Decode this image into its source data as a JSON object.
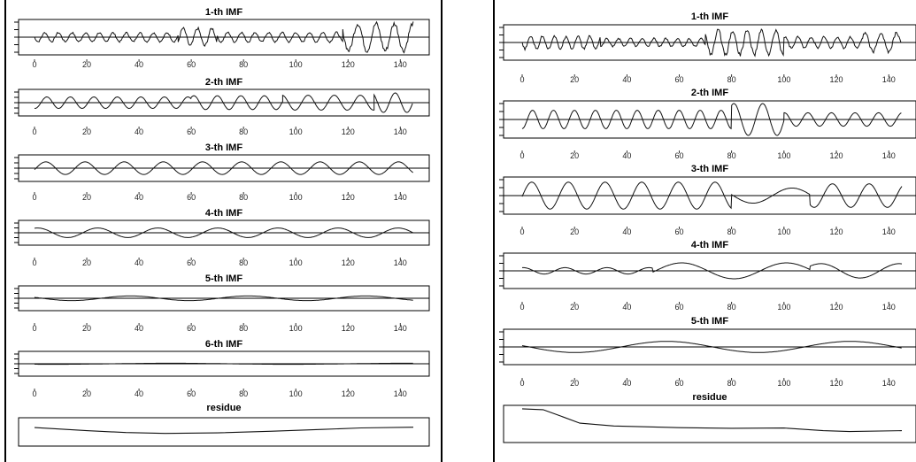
{
  "figures": [
    {
      "id": "left",
      "plots": [
        {
          "title": "1-th IMF",
          "x_ticks": [
            0,
            20,
            40,
            60,
            80,
            100,
            120,
            140
          ],
          "wave": {
            "segments": [
              [
                0,
                55,
                0.28,
                5.2
              ],
              [
                55,
                70,
                0.55,
                5.5
              ],
              [
                70,
                118,
                0.3,
                5.2
              ],
              [
                118,
                145,
                0.85,
                7
              ]
            ]
          }
        },
        {
          "title": "2-th IMF",
          "x_ticks": [
            0,
            20,
            40,
            60,
            80,
            100,
            120,
            140
          ],
          "wave": {
            "segments": [
              [
                0,
                60,
                0.5,
                9
              ],
              [
                60,
                95,
                0.6,
                9
              ],
              [
                95,
                130,
                0.65,
                10
              ],
              [
                130,
                145,
                0.85,
                9
              ]
            ]
          }
        },
        {
          "title": "3-th IMF",
          "x_ticks": [
            0,
            20,
            40,
            60,
            80,
            100,
            120,
            140
          ],
          "wave": {
            "segments": [
              [
                0,
                145,
                0.55,
                15
              ]
            ]
          }
        },
        {
          "title": "4-th IMF",
          "x_ticks": [
            0,
            20,
            40,
            60,
            80,
            100,
            120,
            140
          ],
          "wave": {
            "segments": [
              [
                0,
                145,
                0.45,
                23
              ]
            ]
          }
        },
        {
          "title": "5-th IMF",
          "x_ticks": [
            0,
            20,
            40,
            60,
            80,
            100,
            120,
            140
          ],
          "wave": {
            "segments": [
              [
                0,
                145,
                0.22,
                45
              ]
            ]
          }
        },
        {
          "title": "6-th IMF",
          "x_ticks": [
            0,
            20,
            40,
            60,
            80,
            100,
            120,
            140
          ],
          "wave": {
            "segments": [
              [
                0,
                145,
                0.05,
                90
              ]
            ]
          }
        },
        {
          "title": "residue",
          "x_ticks": [],
          "trend": [
            [
              0,
              0.35
            ],
            [
              20,
              0.1
            ],
            [
              35,
              -0.05
            ],
            [
              50,
              -0.12
            ],
            [
              70,
              -0.08
            ],
            [
              90,
              0.05
            ],
            [
              110,
              0.2
            ],
            [
              125,
              0.32
            ],
            [
              145,
              0.38
            ]
          ]
        }
      ]
    },
    {
      "id": "right",
      "plots": [
        {
          "title": "1-th IMF",
          "x_ticks": [
            0,
            20,
            40,
            60,
            80,
            100,
            120,
            140
          ],
          "wave": {
            "segments": [
              [
                0,
                30,
                0.4,
                4.5
              ],
              [
                30,
                70,
                0.25,
                4.5
              ],
              [
                70,
                100,
                0.75,
                5.5
              ],
              [
                100,
                130,
                0.35,
                5
              ],
              [
                130,
                145,
                0.6,
                6
              ]
            ]
          }
        },
        {
          "title": "2-th IMF",
          "x_ticks": [
            0,
            20,
            40,
            60,
            80,
            100,
            120,
            140
          ],
          "wave": {
            "segments": [
              [
                0,
                80,
                0.55,
                8
              ],
              [
                80,
                100,
                0.95,
                11
              ],
              [
                100,
                145,
                0.4,
                9
              ]
            ]
          }
        },
        {
          "title": "3-th IMF",
          "x_ticks": [
            0,
            20,
            40,
            60,
            80,
            100,
            120,
            140
          ],
          "wave": {
            "segments": [
              [
                0,
                80,
                0.8,
                14
              ],
              [
                80,
                110,
                0.45,
                30
              ],
              [
                110,
                145,
                0.7,
                14
              ]
            ]
          }
        },
        {
          "title": "4-th IMF",
          "x_ticks": [
            0,
            20,
            40,
            60,
            80,
            100,
            120,
            140
          ],
          "wave": {
            "segments": [
              [
                0,
                50,
                0.2,
                16
              ],
              [
                50,
                110,
                0.5,
                40
              ],
              [
                110,
                145,
                0.45,
                30
              ]
            ]
          }
        },
        {
          "title": "5-th IMF",
          "x_ticks": [
            0,
            20,
            40,
            60,
            80,
            100,
            120,
            140
          ],
          "wave": {
            "segments": [
              [
                0,
                145,
                0.35,
                70
              ]
            ]
          }
        },
        {
          "title": "residue",
          "x_ticks": [],
          "trend": [
            [
              0,
              0.9
            ],
            [
              8,
              0.85
            ],
            [
              15,
              0.45
            ],
            [
              22,
              0.05
            ],
            [
              35,
              -0.12
            ],
            [
              60,
              -0.22
            ],
            [
              80,
              -0.26
            ],
            [
              100,
              -0.24
            ],
            [
              115,
              -0.4
            ],
            [
              125,
              -0.45
            ],
            [
              145,
              -0.4
            ]
          ]
        }
      ]
    }
  ],
  "chart_data": [
    {
      "type": "line",
      "title": "1-th IMF",
      "figure": "left",
      "x_range": [
        0,
        145
      ],
      "x_ticks": [
        0,
        20,
        40,
        60,
        80,
        100,
        120,
        140
      ]
    },
    {
      "type": "line",
      "title": "2-th IMF",
      "figure": "left",
      "x_range": [
        0,
        145
      ],
      "x_ticks": [
        0,
        20,
        40,
        60,
        80,
        100,
        120,
        140
      ]
    },
    {
      "type": "line",
      "title": "3-th IMF",
      "figure": "left",
      "x_range": [
        0,
        145
      ],
      "x_ticks": [
        0,
        20,
        40,
        60,
        80,
        100,
        120,
        140
      ]
    },
    {
      "type": "line",
      "title": "4-th IMF",
      "figure": "left",
      "x_range": [
        0,
        145
      ],
      "x_ticks": [
        0,
        20,
        40,
        60,
        80,
        100,
        120,
        140
      ]
    },
    {
      "type": "line",
      "title": "5-th IMF",
      "figure": "left",
      "x_range": [
        0,
        145
      ],
      "x_ticks": [
        0,
        20,
        40,
        60,
        80,
        100,
        120,
        140
      ]
    },
    {
      "type": "line",
      "title": "6-th IMF",
      "figure": "left",
      "x_range": [
        0,
        145
      ],
      "x_ticks": [
        0,
        20,
        40,
        60,
        80,
        100,
        120,
        140
      ]
    },
    {
      "type": "line",
      "title": "residue",
      "figure": "left",
      "x_range": [
        0,
        145
      ]
    },
    {
      "type": "line",
      "title": "1-th IMF",
      "figure": "right",
      "x_range": [
        0,
        145
      ],
      "x_ticks": [
        0,
        20,
        40,
        60,
        80,
        100,
        120,
        140
      ]
    },
    {
      "type": "line",
      "title": "2-th IMF",
      "figure": "right",
      "x_range": [
        0,
        145
      ],
      "x_ticks": [
        0,
        20,
        40,
        60,
        80,
        100,
        120,
        140
      ]
    },
    {
      "type": "line",
      "title": "3-th IMF",
      "figure": "right",
      "x_range": [
        0,
        145
      ],
      "x_ticks": [
        0,
        20,
        40,
        60,
        80,
        100,
        120,
        140
      ]
    },
    {
      "type": "line",
      "title": "4-th IMF",
      "figure": "right",
      "x_range": [
        0,
        145
      ],
      "x_ticks": [
        0,
        20,
        40,
        60,
        80,
        100,
        120,
        140
      ]
    },
    {
      "type": "line",
      "title": "5-th IMF",
      "figure": "right",
      "x_range": [
        0,
        145
      ],
      "x_ticks": [
        0,
        20,
        40,
        60,
        80,
        100,
        120,
        140
      ]
    },
    {
      "type": "line",
      "title": "residue",
      "figure": "right",
      "x_range": [
        0,
        145
      ]
    }
  ]
}
